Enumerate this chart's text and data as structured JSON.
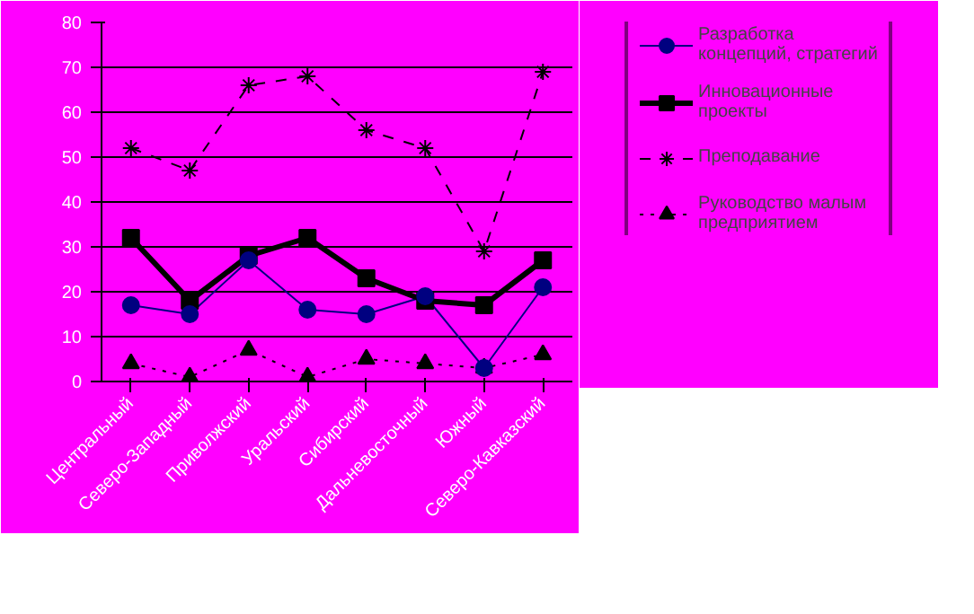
{
  "chart_data": {
    "type": "line",
    "categories": [
      "Центральный",
      "Северо-Западный",
      "Приволжский",
      "Уральский",
      "Сибирский",
      "Дальневосточный",
      "Южный",
      "Северо-Кавказский"
    ],
    "series": [
      {
        "name": "Разработка концепций, стратегий",
        "color": "#000080",
        "marker": "circle",
        "line_style": "solid",
        "values": [
          17,
          15,
          27,
          16,
          15,
          19,
          3,
          21
        ]
      },
      {
        "name": "Инновационные проекты",
        "color": "#000000",
        "marker": "square",
        "line_style": "solid",
        "values": [
          32,
          18,
          28,
          32,
          23,
          18,
          17,
          27
        ]
      },
      {
        "name": "Преподавание",
        "color": "#000000",
        "marker": "cross",
        "line_style": "dashed",
        "values": [
          52,
          47,
          66,
          68,
          56,
          52,
          29,
          69
        ]
      },
      {
        "name": "Руководство малым предприятием",
        "color": "#000000",
        "marker": "triangle",
        "line_style": "dotted",
        "values": [
          4,
          1,
          7,
          1,
          5,
          4,
          3,
          6
        ]
      }
    ],
    "ylim": [
      0,
      80
    ],
    "yticks": [
      0,
      10,
      20,
      30,
      40,
      50,
      60,
      70,
      80
    ],
    "grid": "y",
    "legend": "right"
  }
}
